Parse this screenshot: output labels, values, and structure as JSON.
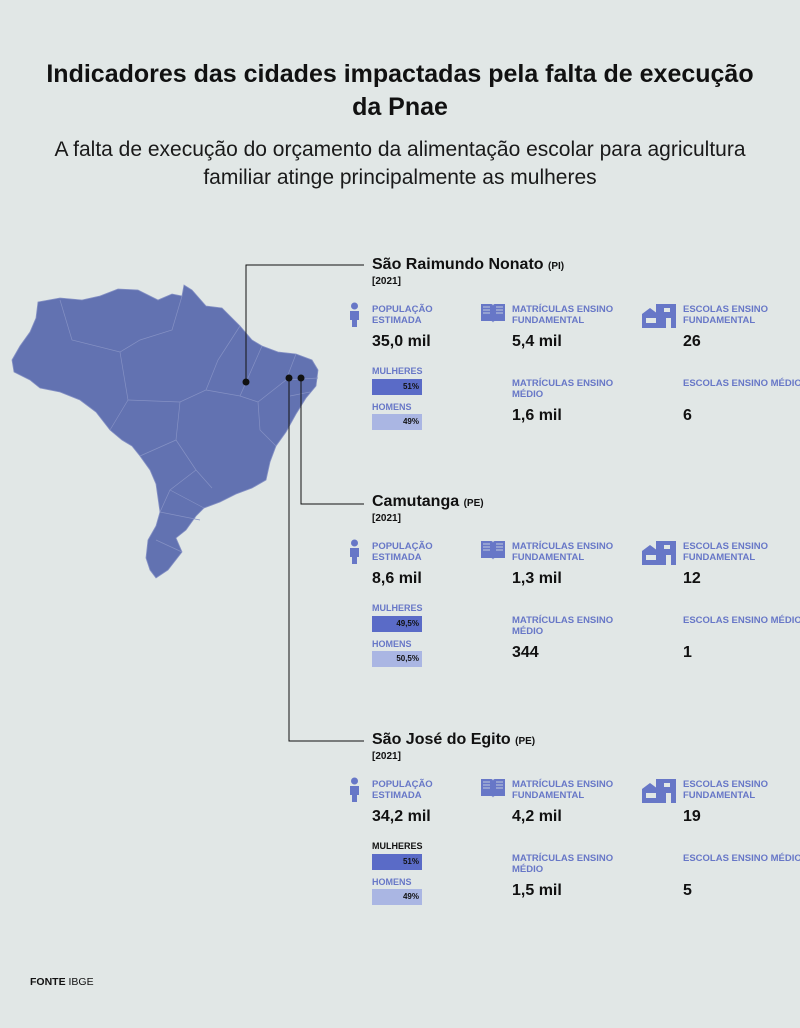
{
  "header": {
    "title": "Indicadores das cidades impactadas pela falta de execução da Pnae",
    "subtitle": "A falta de execução do orçamento da alimentação escolar para agricultura familiar atinge principalmente as mulheres"
  },
  "labels": {
    "population": "POPULAÇÃO ESTIMADA",
    "enroll_fund": "MATRÍCULAS ENSINO FUNDAMENTAL",
    "enroll_med": "MATRÍCULAS ENSINO MÉDIO",
    "schools_fund": "ESCOLAS ENSINO FUNDAMENTAL",
    "schools_med": "ESCOLAS ENSINO MÉDIO",
    "women": "MULHERES",
    "men": "HOMENS"
  },
  "cities": [
    {
      "name": "São Raimundo Nonato",
      "uf": "(PI)",
      "year": "[2021]",
      "population": "35,0 mil",
      "women_pct": "51%",
      "men_pct": "49%",
      "women_share": 0.51,
      "men_share": 0.49,
      "enroll_fund": "5,4 mil",
      "enroll_med": "1,6 mil",
      "schools_fund": "26",
      "schools_med": "6"
    },
    {
      "name": "Camutanga",
      "uf": "(PE)",
      "year": "[2021]",
      "population": "8,6 mil",
      "women_pct": "49,5%",
      "men_pct": "50,5%",
      "women_share": 0.495,
      "men_share": 0.505,
      "enroll_fund": "1,3 mil",
      "enroll_med": "344",
      "schools_fund": "12",
      "schools_med": "1"
    },
    {
      "name": "São José do Egito",
      "uf": "(PE)",
      "year": "[2021]",
      "population": "34,2 mil",
      "women_pct": "51%",
      "men_pct": "49%",
      "women_share": 0.51,
      "men_share": 0.49,
      "enroll_fund": "4,2 mil",
      "enroll_med": "1,5 mil",
      "schools_fund": "19",
      "schools_med": "5"
    }
  ],
  "source": {
    "label": "FONTE",
    "value": "IBGE"
  },
  "colors": {
    "background": "#e1e7e6",
    "map_fill": "#6272b1",
    "accent": "#6777c7",
    "women_bar": "#5a6bc7",
    "men_bar": "#aab6e3"
  }
}
